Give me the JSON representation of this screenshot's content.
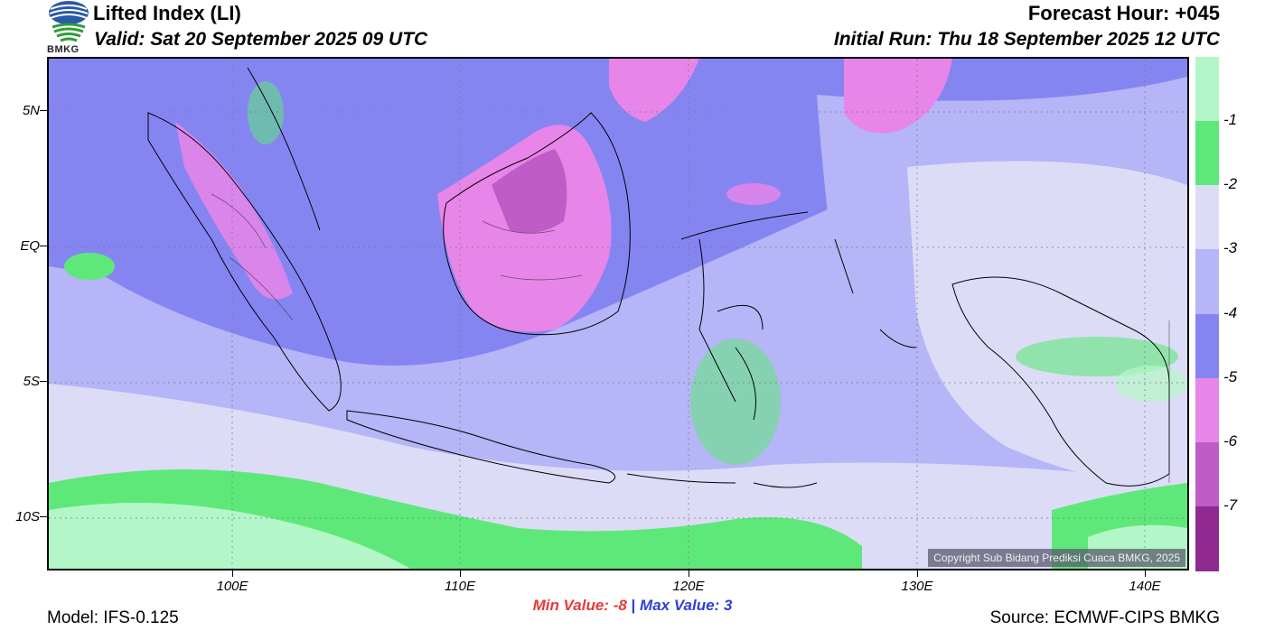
{
  "header": {
    "title": "Lifted Index (LI)",
    "valid": "Valid: Sat 20 September 2025 09 UTC",
    "forecast_hour": "Forecast Hour: +045",
    "initial_run": "Initial Run: Thu 18 September 2025 12 UTC",
    "logo_text": "BMKG"
  },
  "map": {
    "copyright": "Copyright Sub Bidang Prediksi Cuaca BMKG, 2025",
    "lat_labels": [
      "5N",
      "EQ",
      "5S",
      "10S"
    ],
    "lon_labels": [
      "100E",
      "110E",
      "120E",
      "130E",
      "140E"
    ]
  },
  "colorbar": {
    "labels": [
      "-1",
      "-2",
      "-3",
      "-4",
      "-5",
      "-6",
      "-7"
    ],
    "colors": [
      "#b3f7c8",
      "#5fe87a",
      "#dcdcf7",
      "#b5b5f7",
      "#8585f2",
      "#e885e8",
      "#c05cc5",
      "#902a90"
    ]
  },
  "stats": {
    "min_label": "Min Value:",
    "min_value": "-8",
    "separator": "|",
    "max_label": "Max Value:",
    "max_value": "3"
  },
  "footer": {
    "model": "Model: IFS-0.125",
    "source": "Source: ECMWF-CIPS BMKG"
  }
}
